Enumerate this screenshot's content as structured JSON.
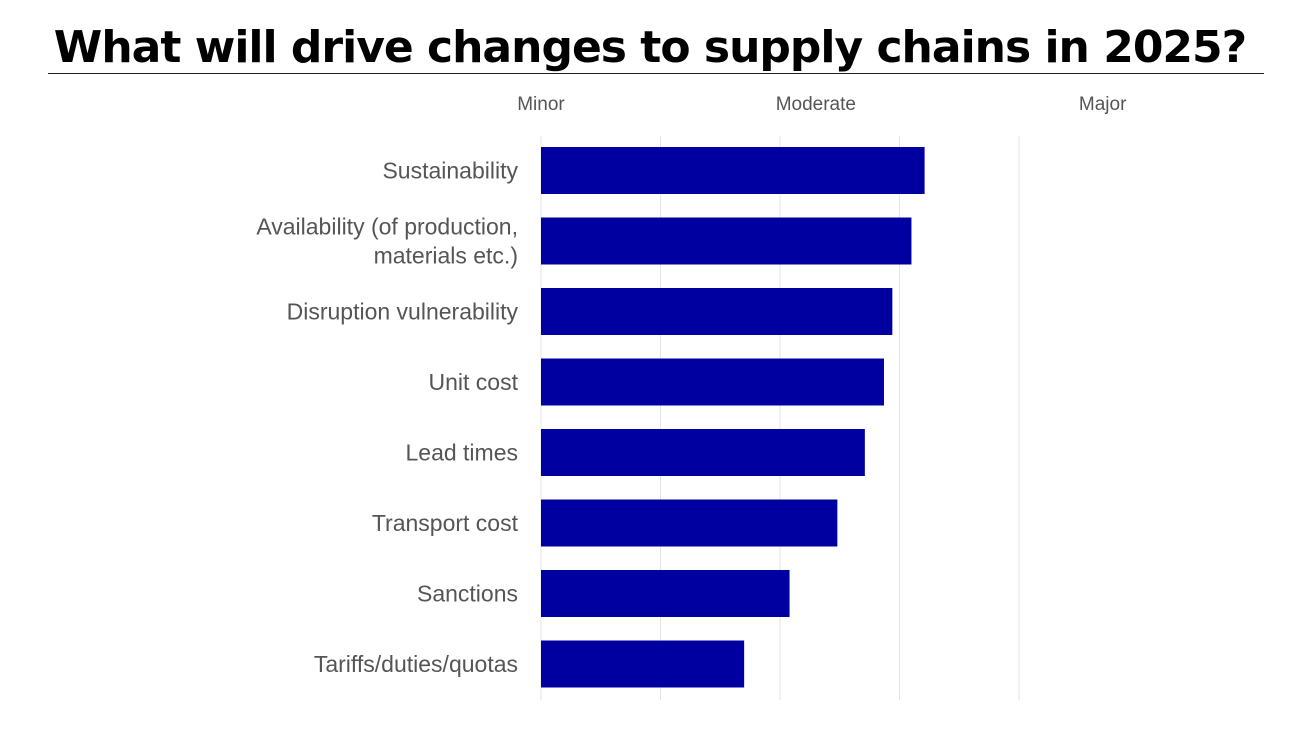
{
  "chart_data": {
    "type": "bar",
    "orientation": "horizontal",
    "title": "What will drive changes to supply chains in 2025?",
    "xlabel": "",
    "ylabel": "",
    "x_tick_labels": [
      "Minor",
      "Moderate",
      "Major"
    ],
    "x_tick_label_values": [
      0,
      2.3,
      4.7
    ],
    "xlim": [
      0,
      4
    ],
    "grid": true,
    "categories": [
      "Sustainability",
      "Availability (of production, materials etc.)",
      "Disruption vulnerability",
      "Unit cost",
      "Lead times",
      "Transport cost",
      "Sanctions",
      "Tariffs/duties/quotas"
    ],
    "category_label_lines": [
      [
        "Sustainability"
      ],
      [
        "Availability (of production,",
        "materials etc.)"
      ],
      [
        "Disruption vulnerability"
      ],
      [
        "Unit cost"
      ],
      [
        "Lead times"
      ],
      [
        "Transport cost"
      ],
      [
        "Sanctions"
      ],
      [
        "Tariffs/duties/quotas"
      ]
    ],
    "values": [
      3.21,
      3.1,
      2.94,
      2.87,
      2.71,
      2.48,
      2.08,
      1.7
    ],
    "bar_color": "#0000a0"
  }
}
